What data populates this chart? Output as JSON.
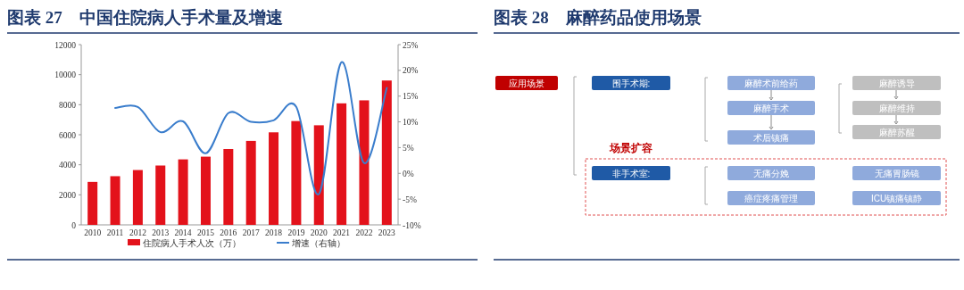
{
  "chart_data": [
    {
      "type": "bar",
      "title": "图表 27　中国住院病人手术量及增速",
      "categories": [
        "2010",
        "2011",
        "2012",
        "2013",
        "2014",
        "2015",
        "2016",
        "2017",
        "2018",
        "2019",
        "2020",
        "2021",
        "2022",
        "2023"
      ],
      "series": [
        {
          "name": "住院病人手术人次（万）",
          "type": "bar",
          "color": "#e3121b",
          "values": [
            2860,
            3240,
            3650,
            3950,
            4360,
            4540,
            5050,
            5590,
            6160,
            6910,
            6630,
            8090,
            8290,
            9610
          ]
        },
        {
          "name": "增速（右轴）",
          "type": "line",
          "axis": "y2",
          "color": "#3a7dcc",
          "values": [
            null,
            12.7,
            12.9,
            8.0,
            10.1,
            3.9,
            11.7,
            10.0,
            10.3,
            12.9,
            -4.0,
            21.6,
            2.0,
            16.6
          ]
        }
      ],
      "ylim": [
        0,
        12000
      ],
      "yticks": [
        0,
        2000,
        4000,
        6000,
        8000,
        10000,
        12000
      ],
      "y2lim": [
        -10,
        25
      ],
      "y2ticks": [
        {
          "value": -10,
          "label": "-10%"
        },
        {
          "value": -5,
          "label": "-5%"
        },
        {
          "value": 0,
          "label": "0%"
        },
        {
          "value": 5,
          "label": "5%"
        },
        {
          "value": 10,
          "label": "10%"
        },
        {
          "value": 15,
          "label": "15%"
        },
        {
          "value": 20,
          "label": "20%"
        },
        {
          "value": 25,
          "label": "25%"
        }
      ],
      "legend": "bottom"
    },
    {
      "type": "other",
      "title": "图表 28　麻醉药品使用场景",
      "annotations": [
        "应用场景",
        "围手术期:",
        "麻醉术前给药",
        "麻醉手术",
        "术后镇痛",
        "麻醉诱导",
        "麻醉维持",
        "麻醉苏醒",
        "场景扩容",
        "非手术室:",
        "无痛分娩",
        "无痛胃肠镜",
        "癌症疼痛管理",
        "ICU镇痛镇静"
      ]
    }
  ]
}
